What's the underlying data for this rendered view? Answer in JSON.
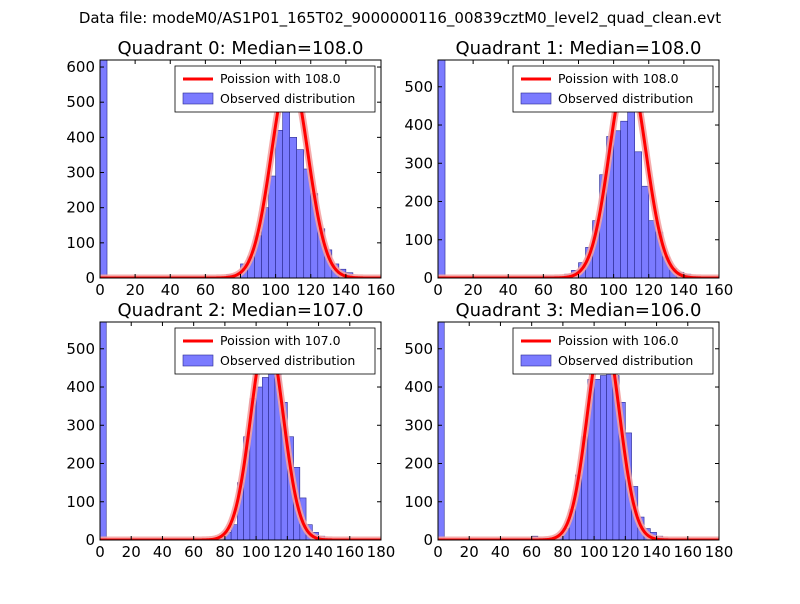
{
  "figure": {
    "title": "Data file: modeM0/AS1P01_165T02_9000000116_00839cztM0_level2_quad_clean.evt",
    "colors": {
      "bars": "#7b7bff",
      "bar_edge": "#2a2a8f",
      "curve": "#ff0000",
      "curve_highlight": "#f4a3a3"
    }
  },
  "chart_data": [
    {
      "type": "bar",
      "title": "Quadrant 0: Median=108.0",
      "xlim": [
        0,
        160
      ],
      "ylim": [
        0,
        620
      ],
      "xticks": [
        0,
        20,
        40,
        60,
        80,
        100,
        120,
        140,
        160
      ],
      "yticks": [
        0,
        100,
        200,
        300,
        400,
        500,
        600
      ],
      "bin_width": 4,
      "legend": {
        "position": "top-right",
        "entries": [
          "Poission with 108.0",
          "Observed distribution"
        ]
      },
      "series": [
        {
          "name": "Observed distribution",
          "type": "bar",
          "bin_starts": [
            0,
            72,
            76,
            80,
            84,
            88,
            92,
            96,
            100,
            104,
            108,
            112,
            116,
            120,
            124,
            128,
            132,
            136,
            140,
            144
          ],
          "values": [
            620,
            10,
            5,
            40,
            60,
            120,
            200,
            290,
            420,
            490,
            400,
            365,
            310,
            240,
            140,
            80,
            40,
            25,
            15,
            5
          ]
        },
        {
          "name": "Poission with 108.0",
          "type": "line",
          "lambda": 108.0,
          "peak": 585,
          "x_range": [
            0,
            160
          ]
        }
      ]
    },
    {
      "type": "bar",
      "title": "Quadrant 1: Median=108.0",
      "xlim": [
        0,
        160
      ],
      "ylim": [
        0,
        570
      ],
      "xticks": [
        0,
        20,
        40,
        60,
        80,
        100,
        120,
        140,
        160
      ],
      "yticks": [
        0,
        100,
        200,
        300,
        400,
        500
      ],
      "bin_width": 4,
      "legend": {
        "position": "top-right",
        "entries": [
          "Poission with 108.0",
          "Observed distribution"
        ]
      },
      "series": [
        {
          "name": "Observed distribution",
          "type": "bar",
          "bin_starts": [
            0,
            60,
            64,
            68,
            72,
            76,
            80,
            84,
            88,
            92,
            96,
            100,
            104,
            108,
            112,
            116,
            120,
            124,
            128,
            132,
            136,
            140,
            144
          ],
          "values": [
            570,
            5,
            5,
            5,
            10,
            20,
            40,
            80,
            150,
            270,
            370,
            385,
            410,
            445,
            330,
            240,
            150,
            120,
            55,
            25,
            15,
            10,
            5
          ]
        },
        {
          "name": "Poission with 108.0",
          "type": "line",
          "lambda": 108.0,
          "peak": 545,
          "x_range": [
            0,
            160
          ]
        }
      ]
    },
    {
      "type": "bar",
      "title": "Quadrant 2: Median=107.0",
      "xlim": [
        0,
        180
      ],
      "ylim": [
        0,
        570
      ],
      "xticks": [
        0,
        20,
        40,
        60,
        80,
        100,
        120,
        140,
        160,
        180
      ],
      "yticks": [
        0,
        100,
        200,
        300,
        400,
        500
      ],
      "bin_width": 4,
      "legend": {
        "position": "top-right",
        "entries": [
          "Poission with 107.0",
          "Observed distribution"
        ]
      },
      "series": [
        {
          "name": "Observed distribution",
          "type": "bar",
          "bin_starts": [
            0,
            76,
            80,
            84,
            88,
            92,
            96,
            100,
            104,
            108,
            112,
            116,
            120,
            124,
            128,
            132,
            136,
            140,
            144,
            148,
            152,
            156
          ],
          "values": [
            570,
            5,
            20,
            40,
            150,
            270,
            370,
            400,
            425,
            490,
            440,
            360,
            270,
            190,
            110,
            40,
            20,
            10,
            5,
            3,
            3,
            2
          ]
        },
        {
          "name": "Poission with 107.0",
          "type": "line",
          "lambda": 107.0,
          "peak": 540,
          "x_range": [
            0,
            180
          ]
        }
      ]
    },
    {
      "type": "bar",
      "title": "Quadrant 3: Median=106.0",
      "xlim": [
        0,
        180
      ],
      "ylim": [
        0,
        570
      ],
      "xticks": [
        0,
        20,
        40,
        60,
        80,
        100,
        120,
        140,
        160,
        180
      ],
      "yticks": [
        0,
        100,
        200,
        300,
        400,
        500
      ],
      "bin_width": 4,
      "legend": {
        "position": "top-right",
        "entries": [
          "Poission with 106.0",
          "Observed distribution"
        ]
      },
      "series": [
        {
          "name": "Observed distribution",
          "type": "bar",
          "bin_starts": [
            0,
            60,
            64,
            68,
            72,
            76,
            80,
            84,
            88,
            92,
            96,
            100,
            104,
            108,
            112,
            116,
            120,
            124,
            128,
            132,
            136,
            140,
            144
          ],
          "values": [
            570,
            10,
            5,
            5,
            5,
            10,
            30,
            80,
            170,
            270,
            420,
            420,
            430,
            540,
            430,
            360,
            280,
            140,
            60,
            30,
            20,
            10,
            5
          ]
        },
        {
          "name": "Poission with 106.0",
          "type": "line",
          "lambda": 106.0,
          "peak": 545,
          "x_range": [
            0,
            180
          ]
        }
      ]
    }
  ]
}
